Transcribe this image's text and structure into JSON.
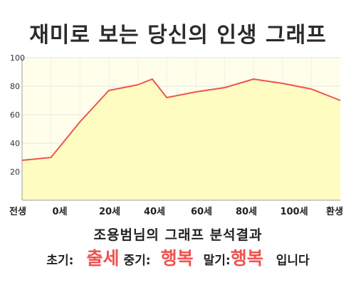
{
  "chart_data": {
    "type": "area",
    "title": "재미로 보는 당신의 인생 그래프",
    "xlabel": "",
    "ylabel": "",
    "x_tick_labels": [
      "전생",
      "0세",
      "20세",
      "40세",
      "60세",
      "80세",
      "100세",
      "환생"
    ],
    "y_ticks": [
      20,
      40,
      60,
      80,
      100
    ],
    "ylim": [
      0,
      100
    ],
    "grid": true,
    "series": [
      {
        "x": [
          -10,
          0,
          10,
          20,
          30,
          35,
          40,
          50,
          60,
          70,
          80,
          90
        ],
        "values": [
          28,
          30,
          55,
          77,
          81,
          85,
          72,
          76,
          79,
          85,
          82,
          78
        ],
        "end_value": 70
      }
    ],
    "colors": {
      "line": "#ef5350",
      "fill": "#fffcc2",
      "grid": "#e6e6e6",
      "axis": "#9e9e9e"
    }
  },
  "result": {
    "title": "조용범님의 그래프 분석결과",
    "early_label": "초기:",
    "early_value": "출세",
    "middle_label": "중기:",
    "middle_value": "행복",
    "late_label": "말기:",
    "late_value": "행복",
    "suffix": "입니다"
  }
}
